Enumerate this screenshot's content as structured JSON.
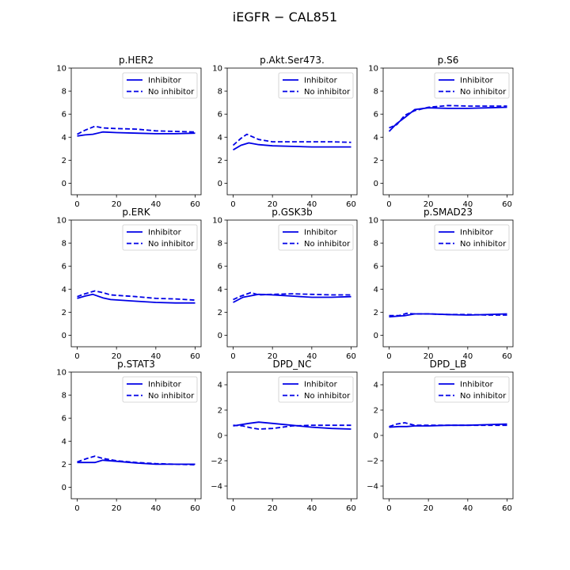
{
  "title": "iEGFR − CAL851",
  "chart_data": [
    {
      "type": "line",
      "title": "p.HER2",
      "xlim": [
        -3,
        63
      ],
      "ylim": [
        -1,
        10
      ],
      "xticks": [
        0,
        20,
        40,
        60
      ],
      "yticks": [
        0,
        2,
        4,
        6,
        8,
        10
      ],
      "series": [
        {
          "name": "Inhibitor",
          "style": "solid",
          "x": [
            0,
            4,
            8,
            13,
            20,
            30,
            40,
            50,
            60
          ],
          "y": [
            4.1,
            4.2,
            4.25,
            4.45,
            4.4,
            4.35,
            4.3,
            4.3,
            4.35
          ]
        },
        {
          "name": "No inhibitor",
          "style": "dashed",
          "x": [
            0,
            4,
            9,
            13,
            20,
            30,
            40,
            50,
            60
          ],
          "y": [
            4.25,
            4.6,
            4.95,
            4.8,
            4.75,
            4.7,
            4.55,
            4.5,
            4.45
          ]
        }
      ]
    },
    {
      "type": "line",
      "title": "p.Akt.Ser473.",
      "xlim": [
        -3,
        63
      ],
      "ylim": [
        -1,
        10
      ],
      "xticks": [
        0,
        20,
        40,
        60
      ],
      "yticks": [
        0,
        2,
        4,
        6,
        8,
        10
      ],
      "series": [
        {
          "name": "Inhibitor",
          "style": "solid",
          "x": [
            0,
            4,
            8,
            13,
            20,
            30,
            40,
            50,
            60
          ],
          "y": [
            2.9,
            3.3,
            3.5,
            3.35,
            3.25,
            3.2,
            3.15,
            3.15,
            3.15
          ]
        },
        {
          "name": "No inhibitor",
          "style": "dashed",
          "x": [
            0,
            4,
            7,
            13,
            20,
            30,
            40,
            50,
            60
          ],
          "y": [
            3.3,
            3.9,
            4.25,
            3.8,
            3.6,
            3.6,
            3.6,
            3.6,
            3.55
          ]
        }
      ]
    },
    {
      "type": "line",
      "title": "p.S6",
      "xlim": [
        -3,
        63
      ],
      "ylim": [
        -1,
        10
      ],
      "xticks": [
        0,
        20,
        40,
        60
      ],
      "yticks": [
        0,
        2,
        4,
        6,
        8,
        10
      ],
      "series": [
        {
          "name": "Inhibitor",
          "style": "solid",
          "x": [
            0,
            4,
            8,
            13,
            20,
            30,
            40,
            50,
            60
          ],
          "y": [
            4.5,
            5.2,
            5.7,
            6.4,
            6.55,
            6.5,
            6.5,
            6.55,
            6.6
          ]
        },
        {
          "name": "No inhibitor",
          "style": "dashed",
          "x": [
            0,
            4,
            8,
            13,
            20,
            30,
            40,
            50,
            60
          ],
          "y": [
            4.8,
            5.1,
            5.9,
            6.3,
            6.6,
            6.75,
            6.7,
            6.7,
            6.7
          ]
        }
      ]
    },
    {
      "type": "line",
      "title": "p.ERK",
      "xlim": [
        -3,
        63
      ],
      "ylim": [
        -1,
        10
      ],
      "xticks": [
        0,
        20,
        40,
        60
      ],
      "yticks": [
        0,
        2,
        4,
        6,
        8,
        10
      ],
      "series": [
        {
          "name": "Inhibitor",
          "style": "solid",
          "x": [
            0,
            4,
            8,
            13,
            17,
            30,
            40,
            50,
            60
          ],
          "y": [
            3.2,
            3.4,
            3.55,
            3.25,
            3.1,
            2.95,
            2.85,
            2.8,
            2.8
          ]
        },
        {
          "name": "No inhibitor",
          "style": "dashed",
          "x": [
            0,
            4,
            9,
            13,
            17,
            30,
            40,
            50,
            60
          ],
          "y": [
            3.35,
            3.6,
            3.85,
            3.7,
            3.5,
            3.35,
            3.2,
            3.15,
            3.05
          ]
        }
      ]
    },
    {
      "type": "line",
      "title": "p.GSK3b",
      "xlim": [
        -3,
        63
      ],
      "ylim": [
        -1,
        10
      ],
      "xticks": [
        0,
        20,
        40,
        60
      ],
      "yticks": [
        0,
        2,
        4,
        6,
        8,
        10
      ],
      "series": [
        {
          "name": "Inhibitor",
          "style": "solid",
          "x": [
            0,
            5,
            13,
            20,
            30,
            40,
            50,
            60
          ],
          "y": [
            2.85,
            3.3,
            3.55,
            3.5,
            3.4,
            3.3,
            3.3,
            3.35
          ]
        },
        {
          "name": "No inhibitor",
          "style": "dashed",
          "x": [
            0,
            4,
            9,
            13,
            20,
            30,
            40,
            50,
            60
          ],
          "y": [
            3.1,
            3.4,
            3.7,
            3.5,
            3.55,
            3.6,
            3.55,
            3.5,
            3.5
          ]
        }
      ]
    },
    {
      "type": "line",
      "title": "p.SMAD23",
      "xlim": [
        -3,
        63
      ],
      "ylim": [
        -1,
        10
      ],
      "xticks": [
        0,
        20,
        40,
        60
      ],
      "yticks": [
        0,
        2,
        4,
        6,
        8,
        10
      ],
      "series": [
        {
          "name": "Inhibitor",
          "style": "solid",
          "x": [
            0,
            8,
            13,
            20,
            30,
            40,
            50,
            60
          ],
          "y": [
            1.6,
            1.7,
            1.85,
            1.85,
            1.8,
            1.75,
            1.8,
            1.85
          ]
        },
        {
          "name": "No inhibitor",
          "style": "dashed",
          "x": [
            0,
            5,
            9,
            13,
            20,
            30,
            40,
            50,
            60
          ],
          "y": [
            1.7,
            1.7,
            1.9,
            1.85,
            1.85,
            1.8,
            1.8,
            1.75,
            1.75
          ]
        }
      ]
    },
    {
      "type": "line",
      "title": "p.STAT3",
      "xlim": [
        -3,
        63
      ],
      "ylim": [
        -1,
        10
      ],
      "xticks": [
        0,
        20,
        40,
        60
      ],
      "yticks": [
        0,
        2,
        4,
        6,
        8,
        10
      ],
      "series": [
        {
          "name": "Inhibitor",
          "style": "solid",
          "x": [
            0,
            5,
            9,
            13,
            20,
            30,
            40,
            50,
            60
          ],
          "y": [
            2.15,
            2.15,
            2.15,
            2.35,
            2.25,
            2.1,
            2.0,
            2.0,
            2.0
          ]
        },
        {
          "name": "No inhibitor",
          "style": "dashed",
          "x": [
            0,
            5,
            9,
            13,
            20,
            30,
            40,
            50,
            60
          ],
          "y": [
            2.2,
            2.5,
            2.7,
            2.5,
            2.3,
            2.15,
            2.05,
            2.0,
            1.95
          ]
        }
      ]
    },
    {
      "type": "line",
      "title": "DPD_NC",
      "xlim": [
        -3,
        63
      ],
      "ylim": [
        -5,
        5
      ],
      "xticks": [
        0,
        20,
        40,
        60
      ],
      "yticks": [
        -4,
        -2,
        0,
        2,
        4
      ],
      "series": [
        {
          "name": "Inhibitor",
          "style": "solid",
          "x": [
            0,
            8,
            13,
            20,
            30,
            40,
            50,
            60
          ],
          "y": [
            0.75,
            0.95,
            1.05,
            0.95,
            0.8,
            0.65,
            0.55,
            0.5
          ]
        },
        {
          "name": "No inhibitor",
          "style": "dashed",
          "x": [
            0,
            5,
            9,
            13,
            20,
            30,
            40,
            50,
            60
          ],
          "y": [
            0.8,
            0.75,
            0.6,
            0.5,
            0.55,
            0.75,
            0.8,
            0.8,
            0.8
          ]
        }
      ]
    },
    {
      "type": "line",
      "title": "DPD_LB",
      "xlim": [
        -3,
        63
      ],
      "ylim": [
        -5,
        5
      ],
      "xticks": [
        0,
        20,
        40,
        60
      ],
      "yticks": [
        -4,
        -2,
        0,
        2,
        4
      ],
      "series": [
        {
          "name": "Inhibitor",
          "style": "solid",
          "x": [
            0,
            5,
            9,
            13,
            20,
            30,
            40,
            50,
            60
          ],
          "y": [
            0.65,
            0.7,
            0.7,
            0.75,
            0.75,
            0.8,
            0.8,
            0.85,
            0.9
          ]
        },
        {
          "name": "No inhibitor",
          "style": "dashed",
          "x": [
            0,
            4,
            8,
            13,
            20,
            30,
            40,
            50,
            60
          ],
          "y": [
            0.7,
            0.9,
            1.0,
            0.8,
            0.8,
            0.8,
            0.8,
            0.8,
            0.8
          ]
        }
      ]
    }
  ],
  "colors": {
    "series": "#0000e6",
    "axes": "#000000"
  },
  "legend_placement": "upper right"
}
